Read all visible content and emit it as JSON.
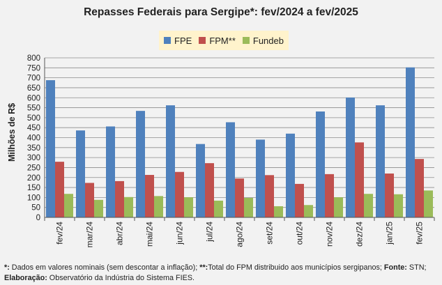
{
  "chart_data": {
    "type": "bar",
    "title": "Repasses Federais para Sergipe*: fev/2024 a fev/2025",
    "ylabel": "Milhões de R$",
    "xlabel": "",
    "ylim": [
      0,
      800
    ],
    "yticks": [
      0,
      50,
      100,
      150,
      200,
      250,
      300,
      350,
      400,
      450,
      500,
      550,
      600,
      650,
      700,
      750,
      800
    ],
    "grid": true,
    "legend_position": "top-center",
    "categories": [
      "fev/24",
      "mar/24",
      "abr/24",
      "mai/24",
      "jun/24",
      "jul/24",
      "ago/24",
      "set/24",
      "out/24",
      "nov/24",
      "dez/24",
      "jan/25",
      "fev/25"
    ],
    "series": [
      {
        "name": "FPE",
        "color": "#4f81bd",
        "values": [
          688,
          436,
          456,
          534,
          562,
          368,
          477,
          390,
          420,
          531,
          601,
          562,
          752
        ]
      },
      {
        "name": "FPM**",
        "color": "#c0504d",
        "values": [
          279,
          173,
          182,
          213,
          228,
          272,
          195,
          212,
          168,
          217,
          376,
          220,
          293
        ]
      },
      {
        "name": "Fundeb",
        "color": "#9bbb59",
        "values": [
          118,
          88,
          102,
          107,
          101,
          84,
          98,
          56,
          62,
          101,
          118,
          116,
          135
        ]
      }
    ]
  },
  "footnote": {
    "mark1": "*:",
    "text1": " Dados em valores nominais (sem descontar a inflação); ",
    "mark2": "**:",
    "text2": "Total  do FPM distribuido aos municípios sergipanos; ",
    "fonte_label": "Fonte:",
    "fonte_text": " STN;",
    "elab_label": "Elaboração:",
    "elab_text": " Observatório da Indústria do Sistema FIES."
  }
}
